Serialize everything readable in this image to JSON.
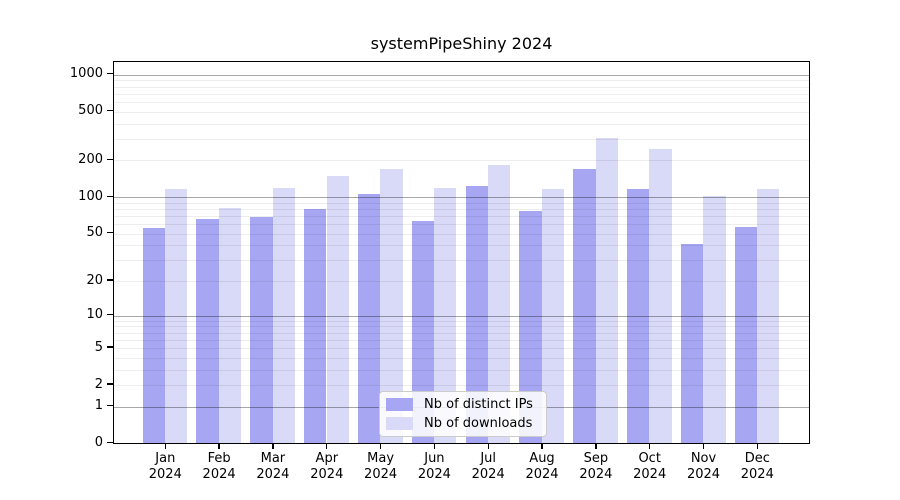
{
  "chart_data": {
    "type": "bar",
    "title": "systemPipeShiny 2024",
    "categories": [
      "Jan 2024",
      "Feb 2024",
      "Mar 2024",
      "Apr 2024",
      "May 2024",
      "Jun 2024",
      "Jul 2024",
      "Aug 2024",
      "Sep 2024",
      "Oct 2024",
      "Nov 2024",
      "Dec 2024"
    ],
    "series": [
      {
        "name": "Nb of distinct IPs",
        "color": "#a6a6f2",
        "values": [
          54,
          64,
          67,
          78,
          103,
          62,
          120,
          75,
          165,
          113,
          40,
          55
        ]
      },
      {
        "name": "Nb of downloads",
        "color": "#d9d9f8",
        "values": [
          114,
          80,
          117,
          145,
          165,
          117,
          180,
          115,
          300,
          243,
          99,
          114
        ]
      }
    ],
    "xlabel": "",
    "ylabel": "",
    "y_axis": {
      "scale": "log1p",
      "tick_labels": [
        "1000",
        "500",
        "200",
        "100",
        "50",
        "20",
        "10",
        "5",
        "2",
        "1",
        "0"
      ],
      "tick_values": [
        1000,
        500,
        200,
        100,
        50,
        20,
        10,
        5,
        2,
        1,
        0
      ],
      "major_gridlines": [
        1000,
        100,
        10,
        1
      ],
      "ylim": [
        0,
        1270
      ]
    },
    "legend": {
      "position": "lower center",
      "entries": [
        "Nb of distinct IPs",
        "Nb of downloads"
      ]
    },
    "grid": true
  }
}
